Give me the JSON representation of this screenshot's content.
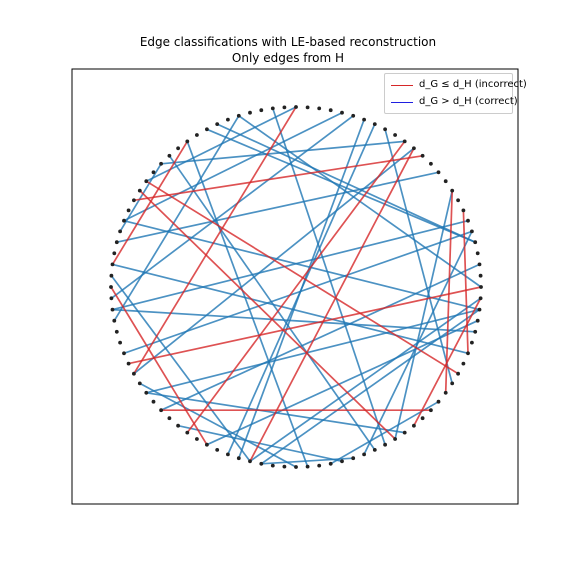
{
  "chart_data": {
    "type": "network",
    "title_lines": [
      "Edge classifications with LE-based reconstruction",
      "Only edges from H"
    ],
    "axes_visible": false,
    "legend_placement": "top-right",
    "legend": [
      {
        "label": "d_G ≤ d_H (incorrect)",
        "color": "#d62728"
      },
      {
        "label": "d_G > d_H (correct)",
        "color": "#1f1fe0"
      }
    ],
    "node_color": "#222222",
    "edge_colors": {
      "correct": "#1f77b4",
      "incorrect": "#d62728"
    },
    "node_count": 100,
    "edges_correct": [
      [
        4,
        32
      ],
      [
        25,
        40
      ],
      [
        45,
        38
      ],
      [
        56,
        5
      ],
      [
        46,
        11
      ],
      [
        48,
        94
      ],
      [
        14,
        58
      ],
      [
        9,
        84
      ],
      [
        51,
        20
      ],
      [
        30,
        0
      ],
      [
        71,
        49
      ],
      [
        64,
        79
      ],
      [
        18,
        69
      ],
      [
        97,
        67
      ],
      [
        19,
        70
      ],
      [
        71,
        99
      ],
      [
        33,
        4
      ],
      [
        75,
        59
      ],
      [
        27,
        83
      ],
      [
        38,
        15
      ],
      [
        17,
        91
      ],
      [
        21,
        44
      ],
      [
        81,
        5
      ],
      [
        30,
        53
      ],
      [
        85,
        60
      ],
      [
        62,
        2
      ],
      [
        52,
        6
      ],
      [
        78,
        89
      ],
      [
        44,
        98
      ],
      [
        76,
        35
      ],
      [
        60,
        98
      ],
      [
        52,
        96
      ],
      [
        72,
        98
      ],
      [
        82,
        37
      ],
      [
        72,
        80
      ]
    ],
    "edges_incorrect": [
      [
        25,
        58
      ],
      [
        15,
        65
      ],
      [
        0,
        57
      ],
      [
        67,
        50
      ],
      [
        92,
        40
      ],
      [
        35,
        48
      ],
      [
        41,
        84
      ],
      [
        94,
        7
      ],
      [
        62,
        88
      ],
      [
        42,
        13
      ],
      [
        99,
        86
      ],
      [
        14,
        71
      ],
      [
        90,
        9
      ]
    ]
  }
}
